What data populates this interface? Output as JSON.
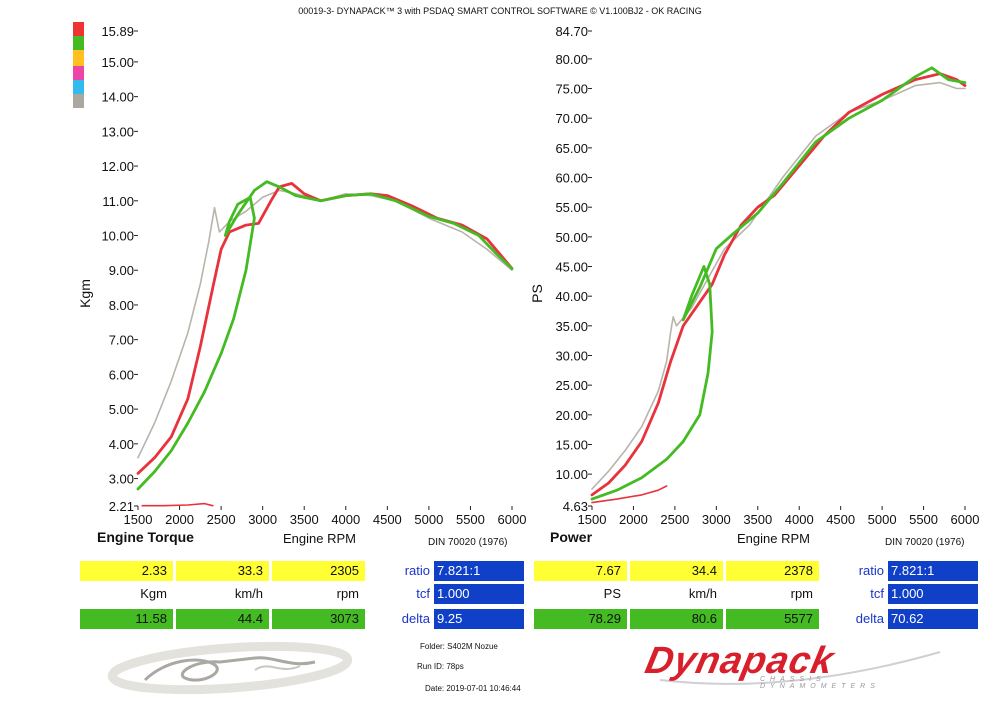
{
  "header": {
    "title": "00019-3- DYNAPACK™ 3 with PSDAQ SMART CONTROL SOFTWARE © V1.100BJ2 - OK RACING"
  },
  "colors": {
    "red": "#e8323c",
    "green": "#44bb22",
    "gray": "#b8b4ac",
    "blue_cell": "#1040c8",
    "yellow_cell": "#ffff33"
  },
  "legend": [
    {
      "color": "#ee3333"
    },
    {
      "color": "#44bb22"
    },
    {
      "color": "#ffc020"
    },
    {
      "color": "#ee44aa"
    },
    {
      "color": "#33bbee"
    },
    {
      "color": "#aaa8a0"
    }
  ],
  "chart_data": [
    {
      "type": "line",
      "title": "Engine Torque",
      "xlabel": "Engine RPM",
      "ylabel": "Kgm",
      "standard": "DIN 70020 (1976)",
      "xlim": [
        1500,
        6000
      ],
      "ylim": [
        2.21,
        15.89
      ],
      "x_ticks": [
        1500,
        2000,
        2500,
        3000,
        3500,
        4000,
        4500,
        5000,
        5500,
        6000
      ],
      "y_ticks": [
        "2.21",
        "3.00",
        "4.00",
        "5.00",
        "6.00",
        "7.00",
        "8.00",
        "9.00",
        "10.00",
        "11.00",
        "12.00",
        "13.00",
        "14.00",
        "15.00",
        "15.89"
      ],
      "series": [
        {
          "color": "#b8b4ac",
          "points": [
            [
              1500,
              3.6
            ],
            [
              1700,
              4.6
            ],
            [
              1900,
              5.8
            ],
            [
              2100,
              7.2
            ],
            [
              2250,
              8.6
            ],
            [
              2350,
              9.8
            ],
            [
              2420,
              10.8
            ],
            [
              2480,
              10.1
            ],
            [
              2600,
              10.4
            ],
            [
              2800,
              10.7
            ],
            [
              3000,
              11.1
            ],
            [
              3200,
              11.3
            ],
            [
              3400,
              11.2
            ],
            [
              3700,
              11.0
            ],
            [
              4000,
              11.2
            ],
            [
              4300,
              11.15
            ],
            [
              4600,
              11.0
            ],
            [
              5000,
              10.5
            ],
            [
              5400,
              10.1
            ],
            [
              5700,
              9.6
            ],
            [
              6000,
              9.0
            ]
          ]
        },
        {
          "color": "#e8323c",
          "points": [
            [
              1500,
              3.15
            ],
            [
              1700,
              3.6
            ],
            [
              1900,
              4.2
            ],
            [
              2100,
              5.3
            ],
            [
              2250,
              6.8
            ],
            [
              2400,
              8.5
            ],
            [
              2500,
              9.6
            ],
            [
              2600,
              10.1
            ],
            [
              2800,
              10.3
            ],
            [
              2950,
              10.35
            ],
            [
              3100,
              11.0
            ],
            [
              3200,
              11.4
            ],
            [
              3350,
              11.5
            ],
            [
              3500,
              11.2
            ],
            [
              3700,
              11.0
            ],
            [
              4000,
              11.15
            ],
            [
              4300,
              11.2
            ],
            [
              4500,
              11.15
            ],
            [
              4800,
              10.85
            ],
            [
              5100,
              10.5
            ],
            [
              5400,
              10.3
            ],
            [
              5700,
              9.9
            ],
            [
              6000,
              9.05
            ]
          ]
        },
        {
          "color": "#44bb22",
          "points": [
            [
              1500,
              2.7
            ],
            [
              1700,
              3.2
            ],
            [
              1900,
              3.8
            ],
            [
              2100,
              4.6
            ],
            [
              2300,
              5.5
            ],
            [
              2500,
              6.6
            ],
            [
              2650,
              7.6
            ],
            [
              2800,
              9.0
            ],
            [
              2900,
              10.5
            ],
            [
              2850,
              11.1
            ],
            [
              2700,
              10.9
            ],
            [
              2600,
              10.4
            ],
            [
              2550,
              10.0
            ],
            [
              2700,
              10.6
            ],
            [
              2900,
              11.3
            ],
            [
              3050,
              11.55
            ],
            [
              3200,
              11.4
            ],
            [
              3400,
              11.15
            ],
            [
              3700,
              11.0
            ],
            [
              4000,
              11.15
            ],
            [
              4300,
              11.2
            ],
            [
              4600,
              11.0
            ],
            [
              5000,
              10.55
            ],
            [
              5300,
              10.35
            ],
            [
              5600,
              10.0
            ],
            [
              5800,
              9.5
            ],
            [
              6000,
              9.05
            ]
          ]
        },
        {
          "color": "#e8323c",
          "points": [
            [
              1550,
              2.22
            ],
            [
              1800,
              2.22
            ],
            [
              2100,
              2.24
            ],
            [
              2300,
              2.28
            ],
            [
              2400,
              2.22
            ]
          ]
        }
      ]
    },
    {
      "type": "line",
      "title": "Power",
      "xlabel": "Engine RPM",
      "ylabel": "PS",
      "standard": "DIN 70020 (1976)",
      "xlim": [
        1500,
        6000
      ],
      "ylim": [
        4.63,
        84.7
      ],
      "x_ticks": [
        1500,
        2000,
        2500,
        3000,
        3500,
        4000,
        4500,
        5000,
        5500,
        6000
      ],
      "y_ticks": [
        "4.63",
        "10.00",
        "15.00",
        "20.00",
        "25.00",
        "30.00",
        "35.00",
        "40.00",
        "45.00",
        "50.00",
        "55.00",
        "60.00",
        "65.00",
        "70.00",
        "75.00",
        "80.00",
        "84.70"
      ],
      "series": [
        {
          "color": "#b8b4ac",
          "points": [
            [
              1500,
              7.5
            ],
            [
              1700,
              10.5
            ],
            [
              1900,
              14.0
            ],
            [
              2100,
              18.0
            ],
            [
              2300,
              24.0
            ],
            [
              2400,
              29.0
            ],
            [
              2450,
              34.0
            ],
            [
              2480,
              36.5
            ],
            [
              2520,
              35.0
            ],
            [
              2700,
              38.0
            ],
            [
              2900,
              43.0
            ],
            [
              3100,
              48.0
            ],
            [
              3400,
              52.0
            ],
            [
              3800,
              60.0
            ],
            [
              4200,
              67.0
            ],
            [
              4600,
              71.0
            ],
            [
              5000,
              73.0
            ],
            [
              5400,
              75.5
            ],
            [
              5700,
              76.0
            ],
            [
              5900,
              75.0
            ],
            [
              6000,
              75.0
            ]
          ]
        },
        {
          "color": "#e8323c",
          "points": [
            [
              1500,
              6.5
            ],
            [
              1700,
              8.5
            ],
            [
              1900,
              11.5
            ],
            [
              2100,
              15.5
            ],
            [
              2300,
              22.0
            ],
            [
              2450,
              29.0
            ],
            [
              2600,
              35.0
            ],
            [
              2800,
              39.0
            ],
            [
              2950,
              42.0
            ],
            [
              3100,
              47.0
            ],
            [
              3300,
              52.0
            ],
            [
              3500,
              55.0
            ],
            [
              3700,
              57.0
            ],
            [
              4000,
              62.0
            ],
            [
              4300,
              67.0
            ],
            [
              4600,
              71.0
            ],
            [
              5000,
              74.0
            ],
            [
              5400,
              76.5
            ],
            [
              5700,
              77.5
            ],
            [
              5900,
              76.5
            ],
            [
              6000,
              75.5
            ]
          ]
        },
        {
          "color": "#44bb22",
          "points": [
            [
              1500,
              5.8
            ],
            [
              1800,
              7.3
            ],
            [
              2100,
              9.4
            ],
            [
              2400,
              12.5
            ],
            [
              2600,
              15.5
            ],
            [
              2800,
              20.0
            ],
            [
              2900,
              27.0
            ],
            [
              2950,
              34.0
            ],
            [
              2920,
              42.0
            ],
            [
              2850,
              45.0
            ],
            [
              2700,
              40.0
            ],
            [
              2600,
              36.0
            ],
            [
              2800,
              41.5
            ],
            [
              3000,
              48.0
            ],
            [
              3200,
              50.5
            ],
            [
              3500,
              54.0
            ],
            [
              3800,
              59.0
            ],
            [
              4200,
              66.0
            ],
            [
              4600,
              70.0
            ],
            [
              5000,
              73.0
            ],
            [
              5400,
              77.0
            ],
            [
              5600,
              78.5
            ],
            [
              5800,
              76.5
            ],
            [
              6000,
              76.0
            ]
          ]
        },
        {
          "color": "#e8323c",
          "points": [
            [
              1500,
              5.2
            ],
            [
              1800,
              5.8
            ],
            [
              2100,
              6.5
            ],
            [
              2300,
              7.3
            ],
            [
              2400,
              8.0
            ]
          ]
        }
      ]
    }
  ],
  "readouts": [
    {
      "top": {
        "torque": "2.33",
        "speed": "33.3",
        "rpm": "2305"
      },
      "units": {
        "torque": "Kgm",
        "speed": "km/h",
        "rpm": "rpm"
      },
      "bottom": {
        "torque": "11.58",
        "speed": "44.4",
        "rpm": "3073"
      },
      "ratio_label": "ratio",
      "ratio": "7.821:1",
      "tcf_label": "tcf",
      "tcf": "1.000",
      "delta_label": "delta",
      "delta": "9.25"
    },
    {
      "top": {
        "torque": "7.67",
        "speed": "34.4",
        "rpm": "2378"
      },
      "units": {
        "torque": "PS",
        "speed": "km/h",
        "rpm": "rpm"
      },
      "bottom": {
        "torque": "78.29",
        "speed": "80.6",
        "rpm": "5577"
      },
      "ratio_label": "ratio",
      "ratio": "7.821:1",
      "tcf_label": "tcf",
      "tcf": "1.000",
      "delta_label": "delta",
      "delta": "70.62"
    }
  ],
  "meta": {
    "folder_label": "Folder:",
    "folder": "S402M Nozue",
    "run_label": "Run ID:",
    "run": "78ps",
    "date_label": "Date:",
    "date": "2019-07-01 10:46:44"
  },
  "logo": {
    "name": "Dynapack",
    "subtitle": "CHASSIS DYNAMOMETERS",
    "signature": "OK"
  }
}
